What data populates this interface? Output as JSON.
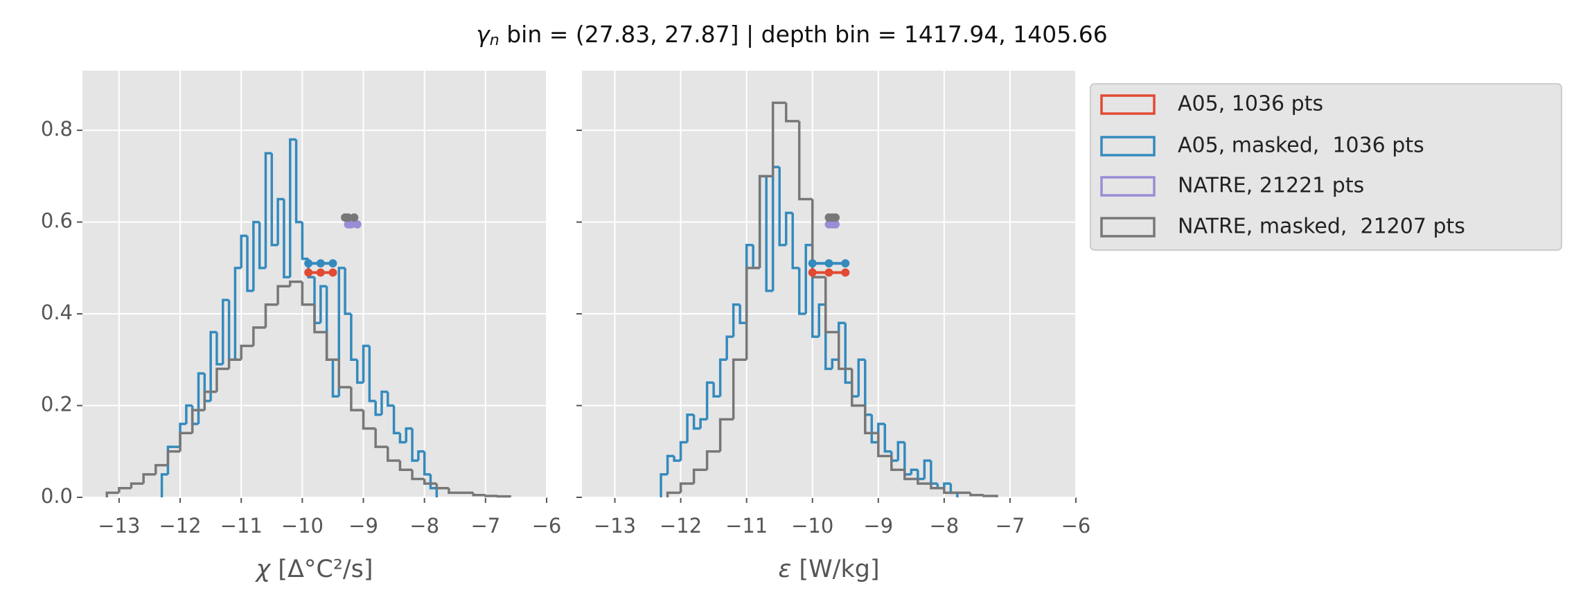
{
  "title": {
    "symbol": "γ",
    "subscript": "n",
    "text": " bin = (27.83, 27.87] | depth bin = 1417.94, 1405.66"
  },
  "chart_data": [
    {
      "type": "histogram",
      "x_label_symbol": "χ",
      "x_label": " [Δ°C²/s]",
      "xlim": [
        -13.6,
        -6
      ],
      "ylim": [
        0,
        0.93
      ],
      "grid": true,
      "xticks": [
        {
          "value": -13,
          "label": "−13"
        },
        {
          "value": -12,
          "label": "−12"
        },
        {
          "value": -11,
          "label": "−11"
        },
        {
          "value": -10,
          "label": "−10"
        },
        {
          "value": -9,
          "label": "−9"
        },
        {
          "value": -8,
          "label": "−8"
        },
        {
          "value": -7,
          "label": "−7"
        },
        {
          "value": -6,
          "label": "−6"
        }
      ],
      "yticks": [
        {
          "value": 0,
          "label": "0.0"
        },
        0.2,
        0.4,
        0.6,
        0.8
      ],
      "series": [
        {
          "name": "A05, 1036 pts",
          "color": "#E24A33",
          "markers": {
            "y": 0.49,
            "x": [
              -9.9,
              -9.7,
              -9.5
            ]
          }
        },
        {
          "name": "A05, masked,  1036 pts",
          "color": "#348ABD",
          "bins": [
            -12.3,
            -12.2,
            -12.1,
            -12.0,
            -11.9,
            -11.8,
            -11.7,
            -11.6,
            -11.5,
            -11.4,
            -11.3,
            -11.2,
            -11.1,
            -11.0,
            -10.9,
            -10.8,
            -10.7,
            -10.6,
            -10.5,
            -10.4,
            -10.3,
            -10.2,
            -10.1,
            -10.0,
            -9.9,
            -9.8,
            -9.7,
            -9.6,
            -9.5,
            -9.4,
            -9.3,
            -9.2,
            -9.1,
            -9.0,
            -8.9,
            -8.8,
            -8.7,
            -8.6,
            -8.5,
            -8.4,
            -8.3,
            -8.2,
            -8.1,
            -8.0,
            -7.9,
            -7.8
          ],
          "values": [
            0.05,
            0.11,
            0.11,
            0.16,
            0.2,
            0.16,
            0.27,
            0.21,
            0.36,
            0.29,
            0.43,
            0.3,
            0.5,
            0.57,
            0.45,
            0.6,
            0.5,
            0.75,
            0.55,
            0.65,
            0.48,
            0.78,
            0.6,
            0.52,
            0.48,
            0.38,
            0.46,
            0.3,
            0.22,
            0.5,
            0.4,
            0.3,
            0.25,
            0.33,
            0.21,
            0.18,
            0.23,
            0.2,
            0.14,
            0.12,
            0.15,
            0.08,
            0.1,
            0.05,
            0.02
          ],
          "markers": {
            "y": 0.51,
            "x": [
              -9.9,
              -9.7,
              -9.5
            ]
          }
        },
        {
          "name": "NATRE, 21221 pts",
          "color": "#988ED5",
          "markers": {
            "y": 0.595,
            "x": [
              -9.25,
              -9.2,
              -9.1
            ]
          }
        },
        {
          "name": "NATRE, masked,  21207 pts",
          "color": "#777777",
          "bins": [
            -13.2,
            -13.0,
            -12.8,
            -12.6,
            -12.4,
            -12.2,
            -12.0,
            -11.8,
            -11.6,
            -11.4,
            -11.2,
            -11.0,
            -10.8,
            -10.6,
            -10.4,
            -10.2,
            -10.0,
            -9.8,
            -9.6,
            -9.4,
            -9.2,
            -9.0,
            -8.8,
            -8.6,
            -8.4,
            -8.2,
            -8.0,
            -7.8,
            -7.6,
            -7.4,
            -7.2,
            -7.0,
            -6.8,
            -6.6
          ],
          "values": [
            0.01,
            0.02,
            0.03,
            0.05,
            0.07,
            0.1,
            0.14,
            0.19,
            0.23,
            0.28,
            0.3,
            0.33,
            0.37,
            0.42,
            0.46,
            0.47,
            0.42,
            0.36,
            0.3,
            0.24,
            0.19,
            0.15,
            0.11,
            0.08,
            0.06,
            0.04,
            0.03,
            0.02,
            0.01,
            0.01,
            0.005,
            0.003,
            0.002
          ],
          "markers": {
            "y": 0.61,
            "x": [
              -9.3,
              -9.25,
              -9.15
            ]
          }
        }
      ]
    },
    {
      "type": "histogram",
      "x_label_symbol": "ε",
      "x_label": " [W/kg]",
      "xlim": [
        -13.5,
        -6
      ],
      "ylim": [
        0,
        0.93
      ],
      "grid": true,
      "xticks": [
        {
          "value": -13,
          "label": "−13"
        },
        {
          "value": -12,
          "label": "−12"
        },
        {
          "value": -11,
          "label": "−11"
        },
        {
          "value": -10,
          "label": "−10"
        },
        {
          "value": -9,
          "label": "−9"
        },
        {
          "value": -8,
          "label": "−8"
        },
        {
          "value": -7,
          "label": "−7"
        },
        {
          "value": -6,
          "label": "−6"
        }
      ],
      "yticks": [
        0,
        0.2,
        0.4,
        0.6,
        0.8
      ],
      "series": [
        {
          "color": "#E24A33",
          "markers": {
            "y": 0.49,
            "x": [
              -10.0,
              -9.75,
              -9.5
            ]
          }
        },
        {
          "color": "#348ABD",
          "bins": [
            -12.3,
            -12.2,
            -12.1,
            -12.0,
            -11.9,
            -11.8,
            -11.7,
            -11.6,
            -11.5,
            -11.4,
            -11.3,
            -11.2,
            -11.1,
            -11.0,
            -10.9,
            -10.8,
            -10.7,
            -10.6,
            -10.5,
            -10.4,
            -10.3,
            -10.2,
            -10.1,
            -10.0,
            -9.9,
            -9.8,
            -9.7,
            -9.6,
            -9.5,
            -9.4,
            -9.3,
            -9.2,
            -9.1,
            -9.0,
            -8.9,
            -8.8,
            -8.7,
            -8.6,
            -8.5,
            -8.4,
            -8.3,
            -8.2,
            -8.1,
            -8.0,
            -7.9,
            -7.8
          ],
          "values": [
            0.05,
            0.09,
            0.08,
            0.12,
            0.18,
            0.15,
            0.17,
            0.25,
            0.22,
            0.3,
            0.35,
            0.42,
            0.38,
            0.55,
            0.5,
            0.7,
            0.45,
            0.72,
            0.55,
            0.62,
            0.5,
            0.4,
            0.55,
            0.35,
            0.42,
            0.28,
            0.3,
            0.38,
            0.25,
            0.22,
            0.3,
            0.18,
            0.12,
            0.16,
            0.1,
            0.08,
            0.12,
            0.05,
            0.06,
            0.04,
            0.08,
            0.03,
            0.02,
            0.03,
            0.01
          ],
          "markers": {
            "y": 0.51,
            "x": [
              -10.0,
              -9.75,
              -9.5
            ]
          }
        },
        {
          "color": "#988ED5",
          "markers": {
            "y": 0.595,
            "x": [
              -9.75,
              -9.7,
              -9.65
            ]
          }
        },
        {
          "color": "#777777",
          "bins": [
            -12.2,
            -12.0,
            -11.8,
            -11.6,
            -11.4,
            -11.2,
            -11.0,
            -10.8,
            -10.6,
            -10.4,
            -10.2,
            -10.0,
            -9.8,
            -9.6,
            -9.4,
            -9.2,
            -9.0,
            -8.8,
            -8.6,
            -8.4,
            -8.2,
            -8.0,
            -7.8,
            -7.6,
            -7.4,
            -7.2
          ],
          "values": [
            0.01,
            0.03,
            0.06,
            0.1,
            0.17,
            0.3,
            0.5,
            0.7,
            0.86,
            0.82,
            0.65,
            0.48,
            0.36,
            0.28,
            0.2,
            0.14,
            0.09,
            0.06,
            0.04,
            0.03,
            0.02,
            0.01,
            0.01,
            0.005,
            0.003
          ],
          "markers": {
            "y": 0.61,
            "x": [
              -9.75,
              -9.7,
              -9.65
            ]
          }
        }
      ]
    }
  ]
}
